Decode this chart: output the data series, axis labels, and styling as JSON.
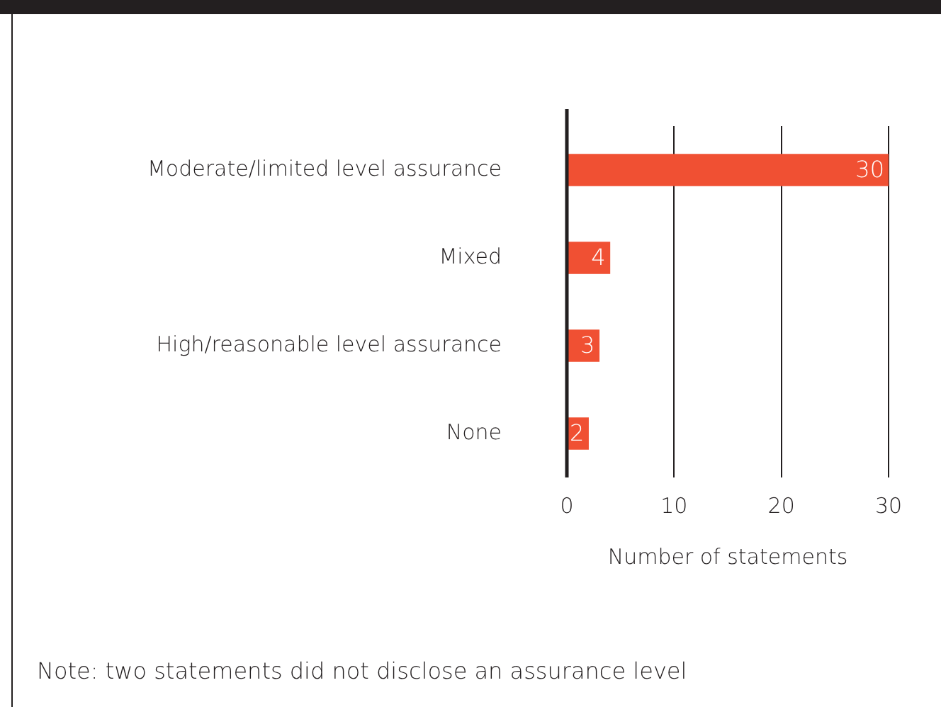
{
  "chart_data": {
    "type": "bar",
    "orientation": "horizontal",
    "xlabel": "Number of statements",
    "categories": [
      "Moderate/limited level assurance",
      "Mixed",
      "High/reasonable level assurance",
      "None"
    ],
    "values": [
      30,
      4,
      3,
      2
    ],
    "color": "#f05033",
    "xlim": [
      0,
      30
    ],
    "xticks": [
      0,
      10,
      20,
      30
    ],
    "grid": "x",
    "legend": false,
    "data_labels": true,
    "annotations": [
      "Note: two statements did not disclose an assurance level"
    ]
  }
}
